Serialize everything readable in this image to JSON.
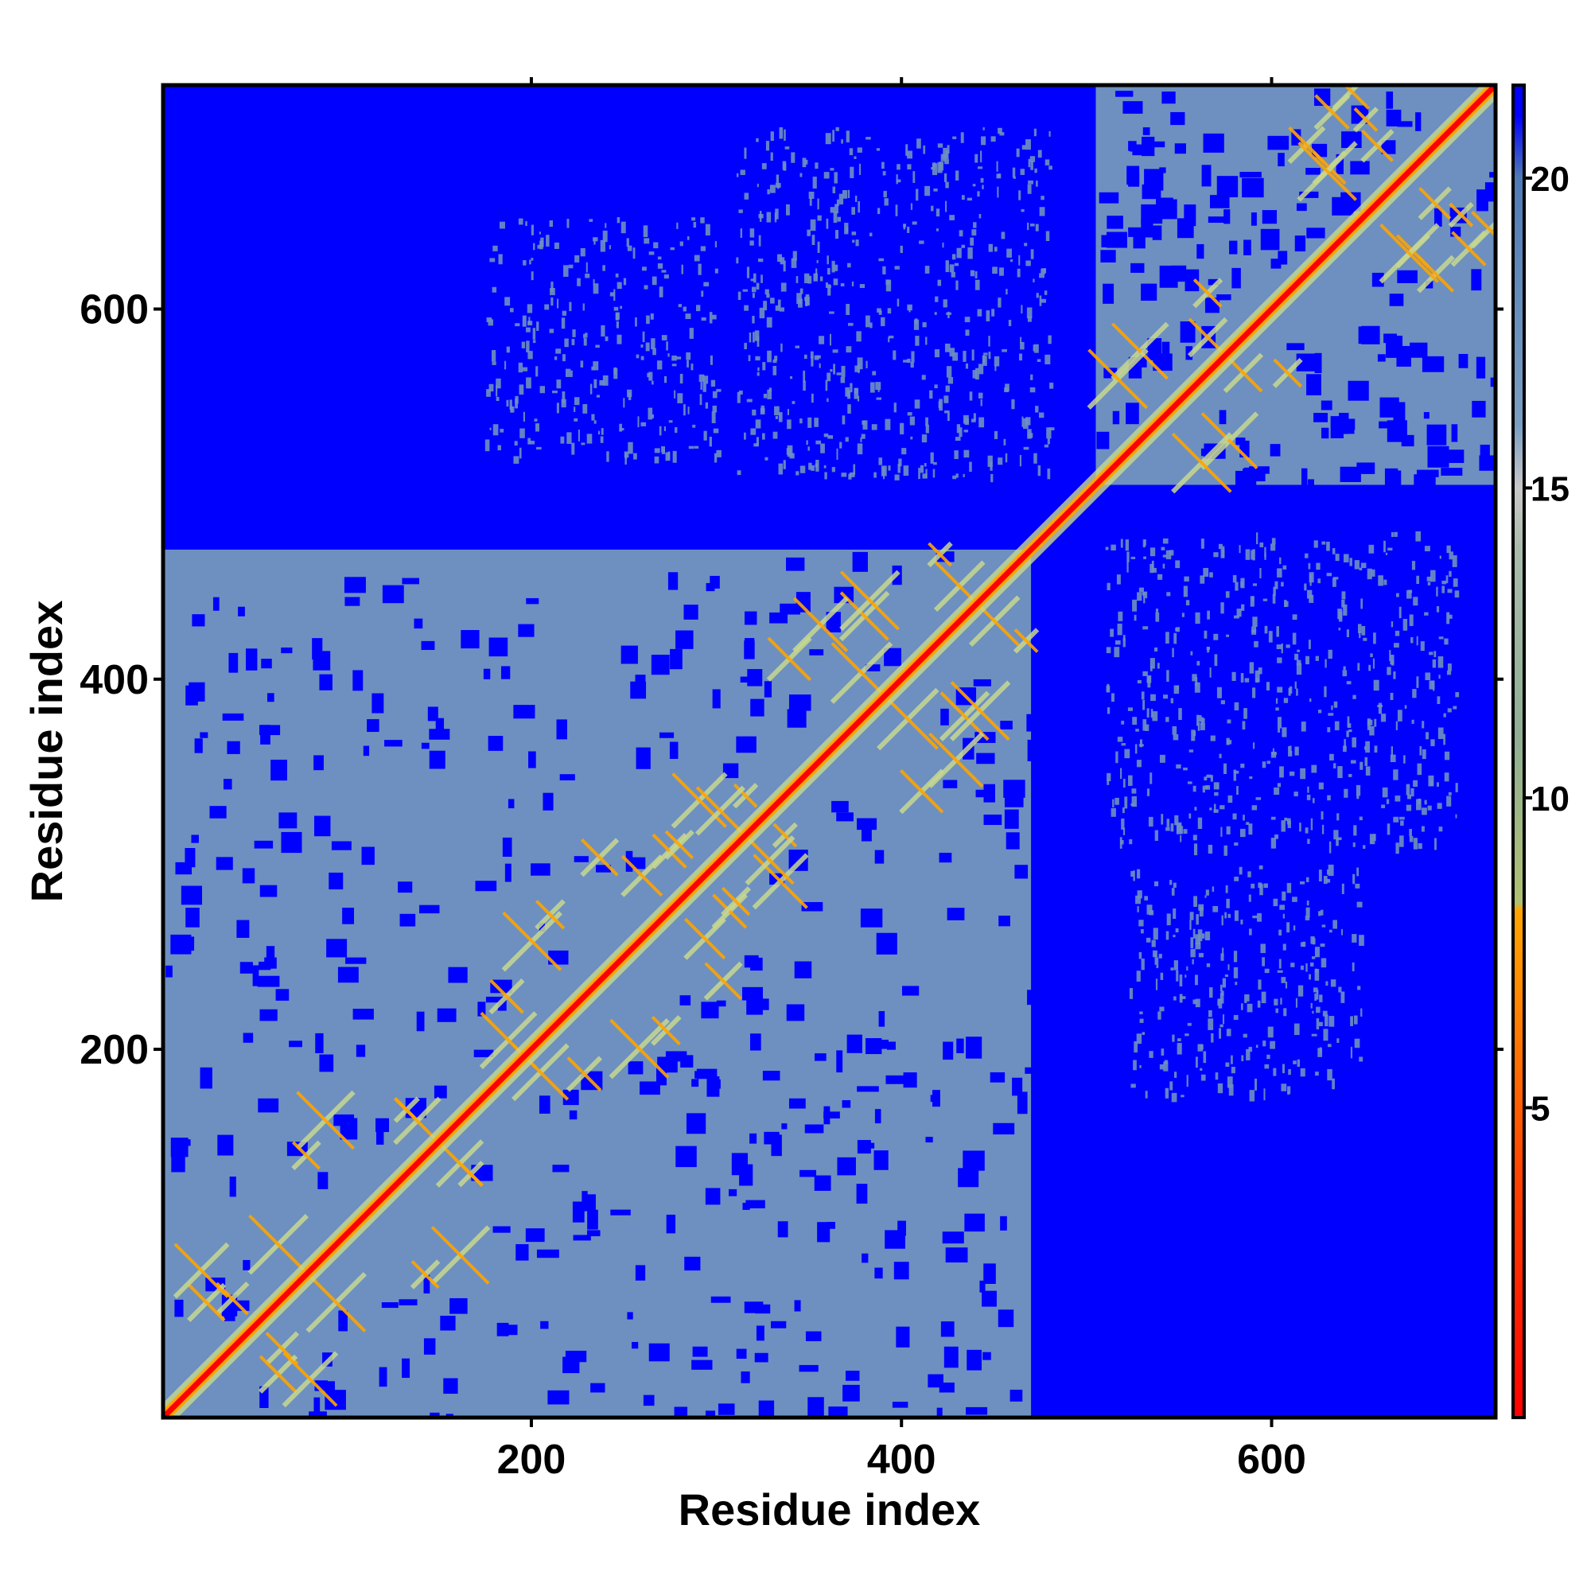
{
  "chart_data": {
    "type": "heatmap",
    "title": "",
    "xlabel": "Residue index",
    "ylabel": "Residue index",
    "xlim": [
      1,
      721
    ],
    "ylim": [
      1,
      721
    ],
    "x_ticks": [
      200,
      400,
      600
    ],
    "y_ticks": [
      200,
      400,
      600
    ],
    "matrix_kind": "symmetric residue-residue distance map",
    "diagonal_value": 0,
    "background_value": 21,
    "domains": [
      {
        "start": 1,
        "end": 470,
        "region_value": 16
      },
      {
        "start": 505,
        "end": 721,
        "region_value": 16
      }
    ],
    "inter_domain_patches": [
      {
        "x": [
          510,
          700
        ],
        "y": [
          310,
          480
        ],
        "value": 18
      },
      {
        "x": [
          520,
          650
        ],
        "y": [
          175,
          300
        ],
        "value": 18
      }
    ],
    "colorbar": {
      "range": [
        0,
        21.5
      ],
      "ticks": [
        5,
        10,
        15,
        20
      ],
      "stops": [
        {
          "value": 0,
          "color": "#ff0000"
        },
        {
          "value": 4,
          "color": "#ff4500"
        },
        {
          "value": 7,
          "color": "#ff8c00"
        },
        {
          "value": 8.2,
          "color": "#ffa500"
        },
        {
          "value": 8.3,
          "color": "#b0c070"
        },
        {
          "value": 11,
          "color": "#8fae95"
        },
        {
          "value": 14,
          "color": "#aabbaa"
        },
        {
          "value": 15,
          "color": "#c8c8c8"
        },
        {
          "value": 16,
          "color": "#7b9fc2"
        },
        {
          "value": 20,
          "color": "#4f7bb5"
        },
        {
          "value": 21,
          "color": "#0000ff"
        }
      ]
    },
    "colors": {
      "background": "#0000ff",
      "fold_region": "#6d90c0",
      "contact_mid": "#c8d890",
      "contact_close": "#ffa500",
      "diagonal": "#ff0000"
    }
  }
}
